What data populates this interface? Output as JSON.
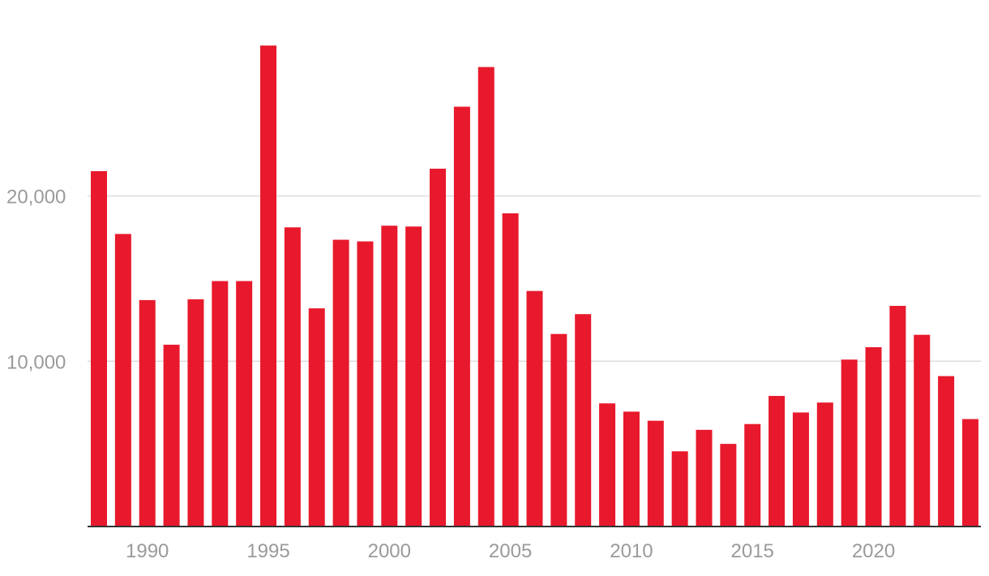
{
  "chart_data": {
    "type": "bar",
    "title": "",
    "xlabel": "",
    "ylabel": "",
    "bar_color": "#e8192c",
    "grid_color": "#dddddd",
    "axis_color": "#333333",
    "tick_label_color": "#9a9a9a",
    "grid": true,
    "ylim": [
      0,
      29500
    ],
    "yticks": [
      {
        "value": 10000,
        "label": "10,000"
      },
      {
        "value": 20000,
        "label": "20,000"
      }
    ],
    "xticks": [
      {
        "value": 1990,
        "label": "1990"
      },
      {
        "value": 1995,
        "label": "1995"
      },
      {
        "value": 2000,
        "label": "2000"
      },
      {
        "value": 2005,
        "label": "2005"
      },
      {
        "value": 2010,
        "label": "2010"
      },
      {
        "value": 2015,
        "label": "2015"
      },
      {
        "value": 2020,
        "label": "2020"
      }
    ],
    "categories": [
      1988,
      1989,
      1990,
      1991,
      1992,
      1993,
      1994,
      1995,
      1996,
      1997,
      1998,
      1999,
      2000,
      2001,
      2002,
      2003,
      2004,
      2005,
      2006,
      2007,
      2008,
      2009,
      2010,
      2011,
      2012,
      2013,
      2014,
      2015,
      2016,
      2017,
      2018,
      2019,
      2020,
      2021,
      2022,
      2023,
      2024
    ],
    "values": [
      21500,
      17700,
      13700,
      11000,
      13750,
      14850,
      14850,
      29100,
      18100,
      13200,
      17350,
      17250,
      18200,
      18150,
      21650,
      25400,
      27800,
      18950,
      14250,
      11650,
      12850,
      7450,
      6950,
      6400,
      4550,
      5850,
      5000,
      6200,
      7900,
      6900,
      7500,
      10100,
      10850,
      13350,
      11600,
      9100,
      6500
    ]
  }
}
